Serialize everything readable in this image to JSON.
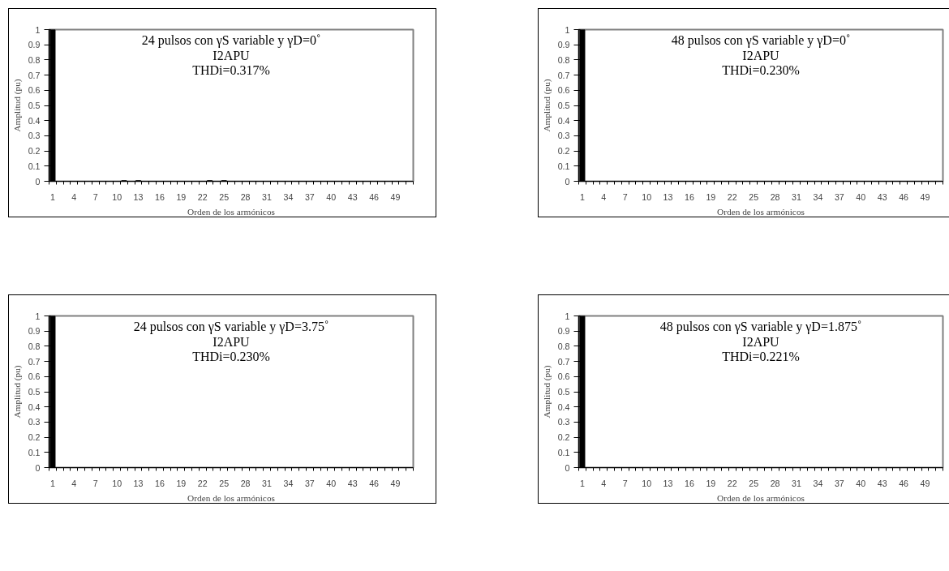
{
  "chart_data": [
    {
      "type": "bar",
      "categories": [
        "1",
        null,
        null,
        "4",
        null,
        null,
        "7",
        null,
        null,
        "10",
        null,
        null,
        "13",
        null,
        null,
        "16",
        null,
        null,
        "19",
        null,
        null,
        "22",
        null,
        null,
        "25",
        null,
        null,
        "28",
        null,
        null,
        "31",
        null,
        null,
        "34",
        null,
        null,
        "37",
        null,
        null,
        "40",
        null,
        null,
        "43",
        null,
        null,
        "46",
        null,
        null,
        "49",
        null,
        null
      ],
      "values": [
        1,
        0,
        0,
        0,
        0,
        0,
        0,
        0,
        0,
        0,
        0.004,
        0,
        0.004,
        0,
        0,
        0,
        0,
        0,
        0,
        0,
        0,
        0,
        0.004,
        0,
        0.004,
        0,
        0,
        0,
        0,
        0,
        0,
        0,
        0,
        0,
        0,
        0,
        0,
        0,
        0,
        0,
        0,
        0,
        0,
        0,
        0,
        0,
        0,
        0,
        0,
        0,
        0
      ],
      "color": "#000000",
      "ylim": [
        0,
        1
      ],
      "yticks": [
        0,
        0.1,
        0.2,
        0.3,
        0.4,
        0.5,
        0.6,
        0.7,
        0.8,
        0.9,
        1
      ],
      "xlabel": "Orden de los armónicos",
      "ylabel": "Amplitud (pu)",
      "annotations": [
        "24 pulsos con γS variable y γD=0˚",
        "I2APU",
        "THDi=0.317%"
      ]
    },
    {
      "type": "bar",
      "categories": [
        "1",
        null,
        null,
        "4",
        null,
        null,
        "7",
        null,
        null,
        "10",
        null,
        null,
        "13",
        null,
        null,
        "16",
        null,
        null,
        "19",
        null,
        null,
        "22",
        null,
        null,
        "25",
        null,
        null,
        "28",
        null,
        null,
        "31",
        null,
        null,
        "34",
        null,
        null,
        "37",
        null,
        null,
        "40",
        null,
        null,
        "43",
        null,
        null,
        "46",
        null,
        null,
        "49",
        null,
        null
      ],
      "values": [
        1,
        0,
        0,
        0,
        0,
        0,
        0,
        0,
        0,
        0,
        0,
        0,
        0,
        0,
        0,
        0,
        0,
        0,
        0,
        0,
        0,
        0,
        0,
        0,
        0,
        0,
        0,
        0,
        0,
        0,
        0,
        0,
        0,
        0,
        0,
        0,
        0,
        0,
        0,
        0,
        0,
        0,
        0,
        0,
        0,
        0,
        0,
        0,
        0,
        0,
        0
      ],
      "color": "#000000",
      "ylim": [
        0,
        1
      ],
      "yticks": [
        0,
        0.1,
        0.2,
        0.3,
        0.4,
        0.5,
        0.6,
        0.7,
        0.8,
        0.9,
        1
      ],
      "xlabel": "Orden de los armónicos",
      "ylabel": "Amplitud (pu)",
      "annotations": [
        "48 pulsos con γS variable y γD=0˚",
        "I2APU",
        "THDi=0.230%"
      ]
    },
    {
      "type": "bar",
      "categories": [
        "1",
        null,
        null,
        "4",
        null,
        null,
        "7",
        null,
        null,
        "10",
        null,
        null,
        "13",
        null,
        null,
        "16",
        null,
        null,
        "19",
        null,
        null,
        "22",
        null,
        null,
        "25",
        null,
        null,
        "28",
        null,
        null,
        "31",
        null,
        null,
        "34",
        null,
        null,
        "37",
        null,
        null,
        "40",
        null,
        null,
        "43",
        null,
        null,
        "46",
        null,
        null,
        "49",
        null,
        null
      ],
      "values": [
        1,
        0,
        0,
        0,
        0,
        0,
        0,
        0,
        0,
        0,
        0,
        0,
        0,
        0,
        0,
        0,
        0,
        0,
        0,
        0,
        0,
        0,
        0,
        0,
        0,
        0,
        0,
        0,
        0,
        0,
        0,
        0,
        0,
        0,
        0,
        0,
        0,
        0,
        0,
        0,
        0,
        0,
        0,
        0,
        0,
        0,
        0,
        0,
        0,
        0,
        0
      ],
      "color": "#000000",
      "ylim": [
        0,
        1
      ],
      "yticks": [
        0,
        0.1,
        0.2,
        0.3,
        0.4,
        0.5,
        0.6,
        0.7,
        0.8,
        0.9,
        1
      ],
      "xlabel": "Orden de los armónicos",
      "ylabel": "Amplitud (pu)",
      "annotations": [
        "24 pulsos con γS variable y γD=3.75˚",
        "I2APU",
        "THDi=0.230%"
      ]
    },
    {
      "type": "bar",
      "categories": [
        "1",
        null,
        null,
        "4",
        null,
        null,
        "7",
        null,
        null,
        "10",
        null,
        null,
        "13",
        null,
        null,
        "16",
        null,
        null,
        "19",
        null,
        null,
        "22",
        null,
        null,
        "25",
        null,
        null,
        "28",
        null,
        null,
        "31",
        null,
        null,
        "34",
        null,
        null,
        "37",
        null,
        null,
        "40",
        null,
        null,
        "43",
        null,
        null,
        "46",
        null,
        null,
        "49",
        null,
        null
      ],
      "values": [
        1,
        0,
        0,
        0,
        0,
        0,
        0,
        0,
        0,
        0,
        0,
        0,
        0,
        0,
        0,
        0,
        0,
        0,
        0,
        0,
        0,
        0,
        0,
        0,
        0,
        0,
        0,
        0,
        0,
        0,
        0,
        0,
        0,
        0,
        0,
        0,
        0,
        0,
        0,
        0,
        0,
        0,
        0,
        0,
        0,
        0,
        0,
        0,
        0,
        0,
        0
      ],
      "color": "#000000",
      "ylim": [
        0,
        1
      ],
      "yticks": [
        0,
        0.1,
        0.2,
        0.3,
        0.4,
        0.5,
        0.6,
        0.7,
        0.8,
        0.9,
        1
      ],
      "xlabel": "Orden de los armónicos",
      "ylabel": "Amplitud (pu)",
      "annotations": [
        "48 pulsos con γS variable y γD=1.875˚",
        "I2APU",
        "THDi=0.221%"
      ]
    }
  ]
}
